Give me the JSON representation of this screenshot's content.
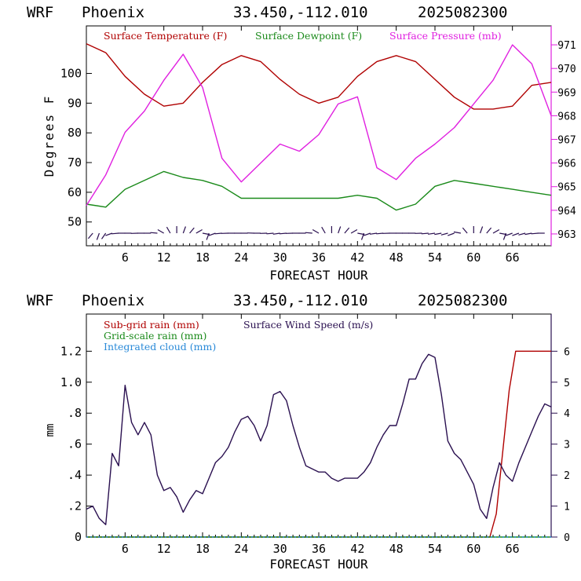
{
  "header": {
    "model": "WRF",
    "location": "Phoenix",
    "coords": "33.450,-112.010",
    "init": "2025082300"
  },
  "colors": {
    "temperature": "#b00000",
    "dewpoint": "#1a8a1a",
    "pressure": "#e020e0",
    "subgrid_rain": "#b00000",
    "gridscale_rain": "#1a8a1a",
    "cloud": "#2a8ad8",
    "wind_speed": "#2a1050",
    "wind_barb": "#2a1050"
  },
  "chart_data": [
    {
      "type": "line",
      "xlabel": "FORECAST HOUR",
      "ylabel": "Degrees F",
      "xlim": [
        0,
        72
      ],
      "ylim": [
        42,
        116
      ],
      "y2lim": [
        962.5,
        971.8
      ],
      "xticks": [
        6,
        12,
        18,
        24,
        30,
        36,
        42,
        48,
        54,
        60,
        66
      ],
      "xtick_labels": [
        "6",
        "12",
        "18",
        "24",
        "30",
        "36",
        "42",
        "48",
        "54",
        "60",
        "66"
      ],
      "yticks": [
        50,
        60,
        70,
        80,
        90,
        100
      ],
      "ytick_labels": [
        "50",
        "60",
        "70",
        "80",
        "90",
        "100"
      ],
      "y2ticks": [
        963,
        964,
        965,
        966,
        967,
        968,
        969,
        970,
        971
      ],
      "y2tick_labels": [
        "963",
        "964",
        "965",
        "966",
        "967",
        "968",
        "969",
        "970",
        "971"
      ],
      "legend": [
        "Surface Temperature (F)",
        "Surface Dewpoint (F)",
        "Surface Pressure (mb)"
      ],
      "legend_placement": "top",
      "grid": false,
      "x": [
        0,
        3,
        6,
        9,
        12,
        15,
        18,
        21,
        24,
        27,
        30,
        33,
        36,
        39,
        42,
        45,
        48,
        51,
        54,
        57,
        60,
        63,
        66,
        69,
        72
      ],
      "series": [
        {
          "name": "Surface Temperature (F)",
          "axis": "left",
          "values": [
            110,
            107,
            99,
            93,
            89,
            90,
            97,
            103,
            106,
            104,
            98,
            93,
            90,
            92,
            99,
            104,
            106,
            104,
            98,
            92,
            88,
            88,
            89,
            96,
            97
          ]
        },
        {
          "name": "Surface Dewpoint (F)",
          "axis": "left",
          "values": [
            56,
            55,
            61,
            64,
            67,
            65,
            64,
            62,
            58,
            58,
            58,
            58,
            58,
            58,
            59,
            58,
            54,
            56,
            62,
            64,
            63,
            62,
            61,
            60,
            59
          ]
        },
        {
          "name": "Surface Pressure (mb)",
          "axis": "right",
          "values": [
            964.2,
            965.5,
            967.3,
            968.2,
            969.5,
            970.6,
            969.2,
            966.2,
            965.2,
            966.0,
            966.8,
            966.5,
            967.2,
            968.5,
            968.8,
            965.8,
            965.3,
            966.2,
            966.8,
            967.5,
            968.5,
            969.5,
            971.0,
            970.2,
            968.0
          ]
        }
      ],
      "wind_barb_hours": [
        1,
        2,
        3,
        4,
        5,
        6,
        7,
        8,
        9,
        10,
        11,
        12,
        13,
        14,
        15,
        16,
        17,
        18,
        19,
        20,
        21,
        22,
        23,
        24,
        25,
        26,
        27,
        28,
        29,
        30,
        31,
        32,
        33,
        34,
        35,
        36,
        37,
        38,
        39,
        40,
        41,
        42,
        43,
        44,
        45,
        46,
        47,
        48,
        49,
        50,
        51,
        52,
        53,
        54,
        55,
        56,
        57,
        58,
        59,
        60,
        61,
        62,
        63,
        64,
        65,
        66,
        67,
        68,
        69,
        70,
        71
      ],
      "wind_barb_angles": [
        220,
        200,
        215,
        250,
        265,
        270,
        270,
        268,
        270,
        270,
        275,
        300,
        330,
        0,
        20,
        40,
        60,
        100,
        200,
        250,
        265,
        268,
        270,
        270,
        270,
        272,
        270,
        268,
        265,
        262,
        265,
        268,
        270,
        270,
        275,
        300,
        330,
        0,
        20,
        40,
        60,
        100,
        200,
        250,
        262,
        265,
        268,
        270,
        270,
        270,
        270,
        268,
        265,
        262,
        260,
        255,
        250,
        280,
        320,
        0,
        20,
        40,
        60,
        100,
        200,
        250,
        250,
        255,
        260,
        265,
        270
      ]
    },
    {
      "type": "line",
      "xlabel": "FORECAST HOUR",
      "ylabel": "mm",
      "xlim": [
        0,
        72
      ],
      "ylim": [
        0,
        1.44
      ],
      "y2lim": [
        0,
        7.2
      ],
      "xticks": [
        6,
        12,
        18,
        24,
        30,
        36,
        42,
        48,
        54,
        60,
        66
      ],
      "xtick_labels": [
        "6",
        "12",
        "18",
        "24",
        "30",
        "36",
        "42",
        "48",
        "54",
        "60",
        "66"
      ],
      "yticks": [
        0,
        0.2,
        0.4,
        0.6,
        0.8,
        1.0,
        1.2
      ],
      "ytick_labels": [
        "0",
        ".2",
        ".4",
        ".6",
        ".8",
        "1.0",
        "1.2"
      ],
      "y2ticks": [
        0,
        1,
        2,
        3,
        4,
        5,
        6
      ],
      "y2tick_labels": [
        "0",
        "1",
        "2",
        "3",
        "4",
        "5",
        "6"
      ],
      "legend": [
        "Sub-grid rain (mm)",
        "Grid-scale rain (mm)",
        "Integrated cloud (mm)",
        "Surface Wind Speed (m/s)"
      ],
      "legend_placement": "top-left",
      "grid": false,
      "series": [
        {
          "name": "Sub-grid rain (mm)",
          "axis": "left",
          "x": [
            0,
            62.5,
            63.5,
            64.5,
            65.5,
            66.5,
            72
          ],
          "values": [
            0,
            0,
            0.15,
            0.55,
            0.95,
            1.2,
            1.2
          ]
        },
        {
          "name": "Grid-scale rain (mm)",
          "axis": "left",
          "x": [
            0,
            72
          ],
          "values": [
            0,
            0
          ]
        },
        {
          "name": "Integrated cloud (mm)",
          "axis": "left",
          "x": [
            0,
            72
          ],
          "values": [
            0,
            0
          ]
        },
        {
          "name": "Surface Wind Speed (m/s)",
          "axis": "right",
          "x": [
            0,
            1,
            2,
            3,
            4,
            5,
            6,
            7,
            8,
            9,
            10,
            11,
            12,
            13,
            14,
            15,
            16,
            17,
            18,
            19,
            20,
            21,
            22,
            23,
            24,
            25,
            26,
            27,
            28,
            29,
            30,
            31,
            32,
            33,
            34,
            35,
            36,
            37,
            38,
            39,
            40,
            41,
            42,
            43,
            44,
            45,
            46,
            47,
            48,
            49,
            50,
            51,
            52,
            53,
            54,
            55,
            56,
            57,
            58,
            59,
            60,
            61,
            62,
            63,
            64,
            65,
            66,
            67,
            68,
            69,
            70,
            71,
            72
          ],
          "values": [
            0.9,
            1.0,
            0.6,
            0.4,
            2.7,
            2.3,
            4.9,
            3.7,
            3.3,
            3.7,
            3.3,
            2.0,
            1.5,
            1.6,
            1.3,
            0.8,
            1.2,
            1.5,
            1.4,
            1.9,
            2.4,
            2.6,
            2.9,
            3.4,
            3.8,
            3.9,
            3.6,
            3.1,
            3.6,
            4.6,
            4.7,
            4.4,
            3.6,
            2.9,
            2.3,
            2.2,
            2.1,
            2.1,
            1.9,
            1.8,
            1.9,
            1.9,
            1.9,
            2.1,
            2.4,
            2.9,
            3.3,
            3.6,
            3.6,
            4.3,
            5.1,
            5.1,
            5.6,
            5.9,
            5.8,
            4.6,
            3.1,
            2.7,
            2.5,
            2.1,
            1.7,
            0.9,
            0.6,
            1.6,
            2.4,
            2.0,
            1.8,
            2.4,
            2.9,
            3.4,
            3.9,
            4.3,
            4.2
          ]
        }
      ]
    }
  ]
}
